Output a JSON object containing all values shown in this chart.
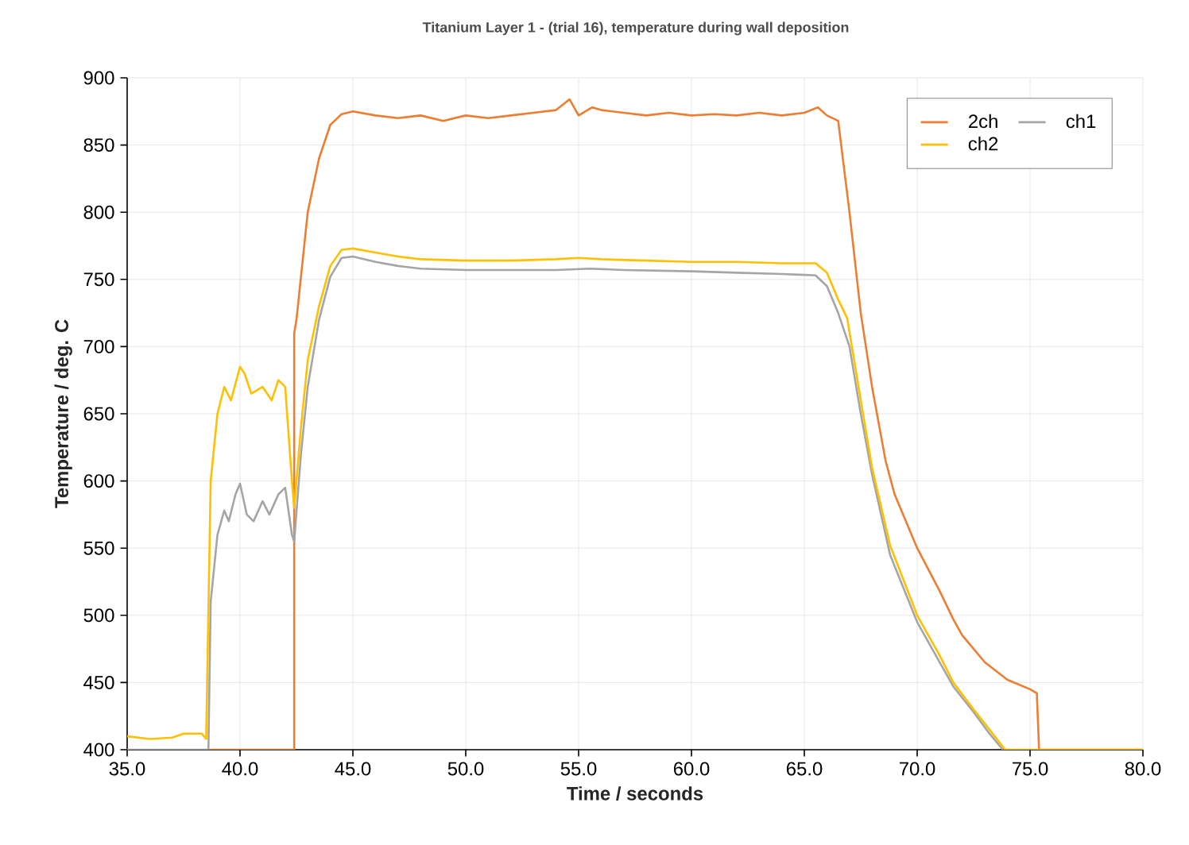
{
  "chart_data": {
    "type": "line",
    "title": "Titanium Layer 1 - (trial 16), temperature during wall deposition",
    "xlabel": "Time / seconds",
    "ylabel": "Temperature / deg. C",
    "xlim": [
      35,
      80
    ],
    "ylim": [
      400,
      900
    ],
    "xticks": [
      {
        "value": 35,
        "label": "35.0"
      },
      {
        "value": 40,
        "label": "40.0"
      },
      {
        "value": 45,
        "label": "45.0"
      },
      {
        "value": 50,
        "label": "50.0"
      },
      {
        "value": 55,
        "label": "55.0"
      },
      {
        "value": 60,
        "label": "60.0"
      },
      {
        "value": 65,
        "label": "65.0"
      },
      {
        "value": 70,
        "label": "70.0"
      },
      {
        "value": 75,
        "label": "75.0"
      },
      {
        "value": 80,
        "label": "80.0"
      }
    ],
    "yticks": [
      400,
      450,
      500,
      550,
      600,
      650,
      700,
      750,
      800,
      850,
      900
    ],
    "grid": true,
    "legend": "top right",
    "marker": "none",
    "line_style": "solid",
    "series": [
      {
        "name": "2ch",
        "color": "#ed7d31",
        "x": [
          38.6,
          42.4,
          42.4,
          42.5,
          43,
          43.5,
          44,
          44.5,
          45,
          46,
          47,
          48,
          49,
          50,
          51,
          52,
          53,
          54,
          54.6,
          55,
          55.6,
          56,
          57,
          58,
          59,
          60,
          61,
          62,
          63,
          64,
          65,
          65.6,
          66,
          66.5,
          67,
          67.5,
          68,
          68.6,
          69,
          70,
          71,
          71.6,
          72,
          73,
          74,
          75,
          75.3,
          75.4,
          80
        ],
        "values": [
          400,
          400,
          710,
          720,
          800,
          840,
          865,
          873,
          875,
          872,
          870,
          872,
          868,
          872,
          870,
          872,
          874,
          876,
          884,
          872,
          878,
          876,
          874,
          872,
          874,
          872,
          873,
          872,
          874,
          872,
          874,
          878,
          872,
          868,
          800,
          725,
          670,
          615,
          590,
          550,
          518,
          497,
          485,
          465,
          452,
          445,
          442,
          400,
          400
        ]
      },
      {
        "name": "ch1",
        "color": "#a5a5a5",
        "x": [
          35,
          38.6,
          38.7,
          39,
          39.3,
          39.5,
          39.8,
          40,
          40.3,
          40.6,
          41,
          41.3,
          41.7,
          42,
          42.3,
          42.4,
          42.7,
          43,
          43.5,
          44,
          44.5,
          45,
          46,
          47,
          48,
          50,
          52,
          54,
          55.5,
          57,
          60,
          62,
          64,
          65.5,
          66,
          66.5,
          67,
          67.5,
          68,
          68.8,
          70,
          71,
          71.6,
          72.5,
          73.2,
          73.8
        ],
        "values": [
          400,
          400,
          510,
          560,
          578,
          570,
          590,
          598,
          575,
          570,
          585,
          575,
          590,
          595,
          560,
          555,
          620,
          670,
          720,
          752,
          766,
          767,
          763,
          760,
          758,
          757,
          757,
          757,
          758,
          757,
          756,
          755,
          754,
          753,
          745,
          725,
          700,
          650,
          605,
          545,
          495,
          465,
          447,
          428,
          412,
          400
        ]
      },
      {
        "name": "ch2",
        "color": "#ffc000",
        "x": [
          35,
          36,
          37,
          37.5,
          38.3,
          38.5,
          38.7,
          39,
          39.3,
          39.6,
          40,
          40.2,
          40.5,
          41,
          41.4,
          41.7,
          42,
          42.3,
          42.4,
          42.7,
          43,
          43.5,
          44,
          44.5,
          45,
          46,
          47,
          48,
          50,
          52,
          54,
          55,
          56,
          58,
          60,
          62,
          64,
          65.5,
          66,
          66.5,
          66.9,
          67.5,
          68,
          68.8,
          70,
          71,
          71.6,
          72.5,
          73.2,
          73.9,
          80
        ],
        "values": [
          410,
          408,
          409,
          412,
          412,
          408,
          600,
          650,
          670,
          660,
          685,
          680,
          665,
          670,
          660,
          675,
          670,
          600,
          580,
          640,
          690,
          730,
          760,
          772,
          773,
          770,
          767,
          765,
          764,
          764,
          765,
          766,
          765,
          764,
          763,
          763,
          762,
          762,
          755,
          735,
          721,
          660,
          610,
          552,
          500,
          470,
          450,
          430,
          415,
          400,
          400
        ]
      }
    ]
  }
}
